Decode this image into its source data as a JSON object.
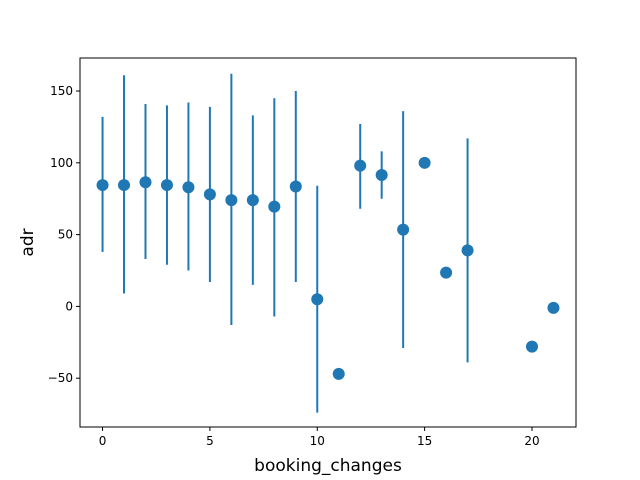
{
  "chart_data": {
    "type": "scatter",
    "xlabel": "booking_changes",
    "ylabel": "adr",
    "xlim": [
      -1.05,
      22.05
    ],
    "ylim": [
      -84,
      173
    ],
    "xticks": [
      0,
      5,
      10,
      15,
      20
    ],
    "yticks": [
      -50,
      0,
      50,
      100,
      150
    ],
    "grid": false,
    "marker_color": "#1f77b4",
    "points": [
      {
        "x": 0,
        "y": 84.5,
        "ylow": 38,
        "yhigh": 132
      },
      {
        "x": 1,
        "y": 84.5,
        "ylow": 9,
        "yhigh": 161
      },
      {
        "x": 2,
        "y": 86.5,
        "ylow": 33,
        "yhigh": 141
      },
      {
        "x": 3,
        "y": 84.5,
        "ylow": 29,
        "yhigh": 140
      },
      {
        "x": 4,
        "y": 83,
        "ylow": 25,
        "yhigh": 142
      },
      {
        "x": 5,
        "y": 78,
        "ylow": 17,
        "yhigh": 139
      },
      {
        "x": 6,
        "y": 74,
        "ylow": -13,
        "yhigh": 162
      },
      {
        "x": 7,
        "y": 74,
        "ylow": 15,
        "yhigh": 133
      },
      {
        "x": 8,
        "y": 69.5,
        "ylow": -7,
        "yhigh": 145
      },
      {
        "x": 9,
        "y": 83.5,
        "ylow": 17,
        "yhigh": 150
      },
      {
        "x": 10,
        "y": 5,
        "ylow": -74,
        "yhigh": 84
      },
      {
        "x": 11,
        "y": -47,
        "ylow": null,
        "yhigh": null
      },
      {
        "x": 12,
        "y": 98,
        "ylow": 68,
        "yhigh": 127
      },
      {
        "x": 13,
        "y": 91.5,
        "ylow": 75,
        "yhigh": 108
      },
      {
        "x": 14,
        "y": 53.5,
        "ylow": -29,
        "yhigh": 136
      },
      {
        "x": 15,
        "y": 100,
        "ylow": null,
        "yhigh": null
      },
      {
        "x": 16,
        "y": 23.5,
        "ylow": null,
        "yhigh": null
      },
      {
        "x": 17,
        "y": 39,
        "ylow": -39,
        "yhigh": 117
      },
      {
        "x": 20,
        "y": -28,
        "ylow": null,
        "yhigh": null
      },
      {
        "x": 21,
        "y": -1,
        "ylow": null,
        "yhigh": null
      }
    ]
  }
}
